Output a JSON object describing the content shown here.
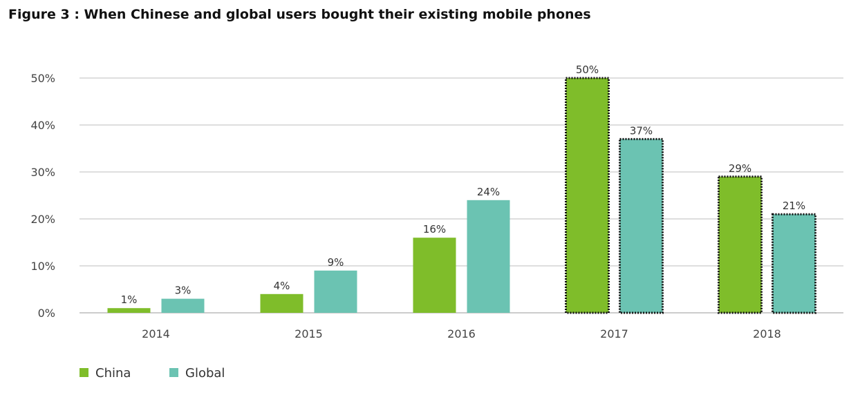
{
  "chart_data": {
    "type": "bar",
    "title": "Figure 3 : When Chinese and global users bought their existing mobile phones",
    "xlabel": "",
    "ylabel": "",
    "categories": [
      "2014",
      "2015",
      "2016",
      "2017",
      "2018"
    ],
    "series": [
      {
        "name": "China",
        "values": [
          1,
          4,
          16,
          50,
          29
        ],
        "labels": [
          "1%",
          "4%",
          "16%",
          "50%",
          "29%"
        ],
        "color": "#7fbd2a"
      },
      {
        "name": "Global",
        "values": [
          3,
          9,
          24,
          37,
          21
        ],
        "labels": [
          "3%",
          "9%",
          "24%",
          "37%",
          "21%"
        ],
        "color": "#6bc3b2"
      }
    ],
    "ylim": [
      0,
      50
    ],
    "yticks": [
      0,
      10,
      20,
      30,
      40,
      50
    ],
    "ytick_labels": [
      "0%",
      "10%",
      "20%",
      "30%",
      "40%",
      "50%"
    ],
    "highlighted_categories": [
      "2017",
      "2018"
    ],
    "grid": true,
    "legend_position": "bottom-left"
  }
}
